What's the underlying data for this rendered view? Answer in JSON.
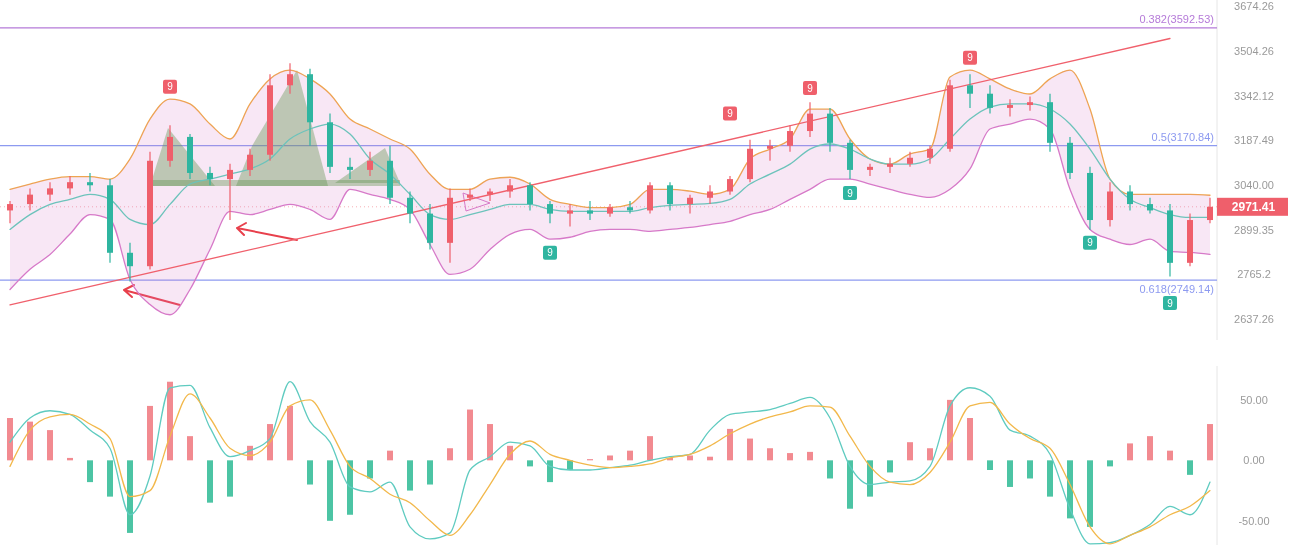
{
  "chart_data": [
    {
      "type": "candlestick",
      "log": true,
      "ylim": [
        2580,
        3700
      ],
      "yticks": [
        3674.26,
        3504.26,
        3342.12,
        3187.49,
        {
          "value": 3040,
          "label": "3040.00"
        },
        2899.35,
        2765.2,
        2637.26
      ],
      "categories": [
        null,
        null,
        null,
        null,
        null,
        null,
        null,
        null,
        null,
        null,
        null,
        null,
        null,
        null,
        null,
        null,
        null,
        null,
        null,
        null,
        null,
        null,
        null,
        null,
        null,
        null,
        null,
        null,
        null,
        null,
        null,
        null,
        null,
        null,
        null,
        null,
        null,
        null,
        null,
        null,
        null,
        null,
        null,
        null,
        null,
        null,
        null,
        null,
        null,
        null,
        null,
        null,
        null,
        null,
        null,
        null,
        null,
        null,
        null,
        null,
        null
      ],
      "colors": [
        "#ef5f6b",
        "#ef5f6b",
        "#ef5f6b",
        "#ef5f6b",
        "#2fb5a0",
        "#2fb5a0",
        "#2fb5a0",
        "#ef5f6b",
        "#ef5f6b",
        "#2fb5a0",
        "#2fb5a0",
        "#ef5f6b",
        "#ef5f6b",
        "#ef5f6b",
        "#ef5f6b",
        "#2fb5a0",
        "#2fb5a0",
        "#2fb5a0",
        "#ef5f6b",
        "#2fb5a0",
        "#2fb5a0",
        "#2fb5a0",
        "#ef5f6b",
        "#ef5f6b",
        "#ef5f6b",
        "#ef5f6b",
        "#2fb5a0",
        "#2fb5a0",
        "#ef5f6b",
        "#2fb5a0",
        "#ef5f6b",
        "#2fb5a0",
        "#ef5f6b",
        "#2fb5a0",
        "#ef5f6b",
        "#ef5f6b",
        "#ef5f6b",
        "#ef5f6b",
        "#ef5f6b",
        "#ef5f6b",
        "#ef5f6b",
        "#2fb5a0",
        "#2fb5a0",
        "#ef5f6b",
        "#ef5f6b",
        "#ef5f6b",
        "#ef5f6b",
        "#ef5f6b",
        "#2fb5a0",
        "#2fb5a0",
        "#ef5f6b",
        "#ef5f6b",
        "#2fb5a0",
        "#2fb5a0",
        "#2fb5a0",
        "#ef5f6b",
        "#2fb5a0",
        "#2fb5a0",
        "#2fb5a0",
        "#ef5f6b",
        "#ef5f6b"
      ],
      "ohlc": [
        [
          2960,
          2990,
          2920,
          2980
        ],
        [
          2980,
          3030,
          2960,
          3010
        ],
        [
          3010,
          3050,
          2990,
          3030
        ],
        [
          3030,
          3070,
          3010,
          3050
        ],
        [
          3050,
          3080,
          3020,
          3040
        ],
        [
          3040,
          3060,
          2800,
          2830
        ],
        [
          2830,
          2860,
          2745,
          2790
        ],
        [
          2790,
          3150,
          2780,
          3120
        ],
        [
          3120,
          3240,
          3100,
          3200
        ],
        [
          3200,
          3210,
          3060,
          3080
        ],
        [
          3080,
          3100,
          3040,
          3060
        ],
        [
          3060,
          3110,
          2930,
          3090
        ],
        [
          3090,
          3160,
          3070,
          3140
        ],
        [
          3140,
          3420,
          3120,
          3380
        ],
        [
          3380,
          3460,
          3350,
          3420
        ],
        [
          3420,
          3440,
          3170,
          3250
        ],
        [
          3250,
          3280,
          3080,
          3100
        ],
        [
          3100,
          3130,
          3060,
          3090
        ],
        [
          3090,
          3150,
          3070,
          3120
        ],
        [
          3120,
          3170,
          2980,
          3000
        ],
        [
          3000,
          3020,
          2920,
          2950
        ],
        [
          2950,
          2980,
          2840,
          2860
        ],
        [
          2860,
          3030,
          2800,
          3000
        ],
        [
          3000,
          3030,
          2990,
          3010
        ],
        [
          3010,
          3030,
          2990,
          3020
        ],
        [
          3020,
          3060,
          3000,
          3040
        ],
        [
          3040,
          3050,
          2960,
          2980
        ],
        [
          2980,
          2990,
          2920,
          2950
        ],
        [
          2950,
          2980,
          2910,
          2960
        ],
        [
          2960,
          2990,
          2930,
          2950
        ],
        [
          2950,
          2980,
          2940,
          2970
        ],
        [
          2970,
          2990,
          2950,
          2960
        ],
        [
          2960,
          3050,
          2950,
          3040
        ],
        [
          3040,
          3050,
          2960,
          2980
        ],
        [
          2980,
          3010,
          2950,
          3000
        ],
        [
          3000,
          3040,
          2980,
          3020
        ],
        [
          3020,
          3070,
          3010,
          3060
        ],
        [
          3060,
          3190,
          3050,
          3160
        ],
        [
          3160,
          3190,
          3120,
          3170
        ],
        [
          3170,
          3240,
          3150,
          3220
        ],
        [
          3220,
          3320,
          3200,
          3280
        ],
        [
          3280,
          3300,
          3150,
          3180
        ],
        [
          3180,
          3190,
          3060,
          3090
        ],
        [
          3090,
          3110,
          3070,
          3100
        ],
        [
          3100,
          3130,
          3080,
          3110
        ],
        [
          3110,
          3150,
          3100,
          3130
        ],
        [
          3130,
          3170,
          3110,
          3160
        ],
        [
          3160,
          3400,
          3150,
          3380
        ],
        [
          3380,
          3420,
          3300,
          3350
        ],
        [
          3350,
          3380,
          3280,
          3300
        ],
        [
          3300,
          3330,
          3270,
          3310
        ],
        [
          3310,
          3340,
          3290,
          3320
        ],
        [
          3320,
          3350,
          3150,
          3180
        ],
        [
          3180,
          3200,
          3060,
          3080
        ],
        [
          3080,
          3100,
          2900,
          2930
        ],
        [
          2930,
          3050,
          2910,
          3020
        ],
        [
          3020,
          3040,
          2960,
          2980
        ],
        [
          2980,
          3000,
          2950,
          2960
        ],
        [
          2960,
          2980,
          2760,
          2800
        ],
        [
          2800,
          2950,
          2790,
          2930
        ],
        [
          2930,
          3000,
          2920,
          2971.41
        ]
      ],
      "series": [
        {
          "type": "line",
          "color": "#f0a84a",
          "values": [
            3027,
            3044,
            3060,
            3068,
            3068,
            3060,
            3126,
            3261,
            3331,
            3314,
            3244,
            3193,
            3314,
            3403,
            3435,
            3403,
            3349,
            3261,
            3227,
            3193,
            3159,
            3076,
            3027,
            3027,
            3060,
            3066,
            3044,
            2995,
            2979,
            2969,
            2969,
            2979,
            3027,
            3027,
            3021,
            3011,
            3027,
            3126,
            3159,
            3193,
            3296,
            3296,
            3193,
            3126,
            3109,
            3143,
            3159,
            3410,
            3435,
            3403,
            3367,
            3349,
            3403,
            3435,
            3296,
            3060,
            3011,
            3011,
            3011,
            3011,
            3008
          ]
        },
        {
          "type": "line",
          "color": "#d77ac9",
          "values": [
            2722,
            2781,
            2825,
            2887,
            2947,
            2932,
            2751,
            2679,
            2650,
            2722,
            2840,
            2957,
            2947,
            2963,
            2979,
            2963,
            2932,
            3027,
            3011,
            2995,
            2963,
            2855,
            2766,
            2781,
            2840,
            2886,
            2901,
            2871,
            2877,
            2895,
            2901,
            2901,
            2895,
            2901,
            2907,
            2916,
            2926,
            2947,
            2963,
            2995,
            3027,
            3060,
            3060,
            3044,
            3027,
            3011,
            3001,
            3027,
            3093,
            3227,
            3244,
            3261,
            3227,
            3027,
            2901,
            2871,
            2855,
            2871,
            2834,
            2831,
            2825
          ]
        },
        {
          "type": "line",
          "color": "#6cc3bb",
          "values": [
            2901,
            2947,
            2979,
            2995,
            3011,
            2995,
            2932,
            2916,
            2979,
            3044,
            3060,
            3076,
            3093,
            3126,
            3193,
            3227,
            3244,
            3210,
            3126,
            3076,
            3011,
            2947,
            2932,
            2947,
            2963,
            2979,
            2979,
            2963,
            2957,
            2957,
            2957,
            2957,
            2969,
            2976,
            2979,
            2982,
            2995,
            3044,
            3076,
            3109,
            3159,
            3176,
            3159,
            3126,
            3109,
            3109,
            3126,
            3193,
            3261,
            3303,
            3314,
            3314,
            3296,
            3244,
            3159,
            3060,
            2995,
            2969,
            2947,
            2938,
            2938
          ],
          "lower": [
            2722,
            2781,
            2825,
            2887,
            2947,
            2932,
            2751,
            2679,
            2650,
            2722,
            2840,
            2957,
            2947,
            2963,
            2979,
            2963,
            2932,
            3027,
            3011,
            2995,
            2963,
            2855,
            2766,
            2781,
            2840,
            2886,
            2901,
            2871,
            2877,
            2895,
            2901,
            2901,
            2895,
            2901,
            2907,
            2916,
            2926,
            2947,
            2963,
            2995,
            3027,
            3060,
            3060,
            3044,
            3027,
            3011,
            3001,
            3027,
            3093,
            3227,
            3244,
            3261,
            3227,
            3027,
            2901,
            2871,
            2855,
            2871,
            2834,
            2831,
            2825
          ],
          "upper": [
            3027,
            3044,
            3060,
            3068,
            3068,
            3060,
            3126,
            3261,
            3331,
            3314,
            3244,
            3193,
            3314,
            3403,
            3435,
            3403,
            3349,
            3261,
            3227,
            3193,
            3159,
            3076,
            3027,
            3027,
            3060,
            3066,
            3044,
            2995,
            2979,
            2969,
            2969,
            2979,
            3027,
            3027,
            3021,
            3011,
            3027,
            3126,
            3159,
            3193,
            3296,
            3296,
            3193,
            3126,
            3109,
            3143,
            3159,
            3410,
            3435,
            3403,
            3367,
            3349,
            3403,
            3435,
            3296,
            3060,
            3011,
            3011,
            3011,
            3011,
            3008
          ]
        },
        {
          "type": "line",
          "color": "#f0606c",
          "values": [
            2678,
            null,
            null,
            null,
            null,
            null,
            null,
            null,
            null,
            null,
            null,
            null,
            null,
            null,
            null,
            null,
            null,
            null,
            null,
            null,
            null,
            null,
            null,
            null,
            null,
            null,
            null,
            null,
            null,
            null,
            null,
            null,
            null,
            null,
            null,
            null,
            null,
            null,
            null,
            null,
            null,
            null,
            null,
            null,
            null,
            null,
            null,
            null,
            null,
            null,
            null,
            null,
            null,
            null,
            null,
            null,
            null,
            null,
            3552,
            null,
            null
          ]
        }
      ],
      "ref_lines": [
        {
          "axis": "y",
          "value": 3592.53,
          "label": "0.382(3592.53)",
          "color": "#b57ad8"
        },
        {
          "axis": "y",
          "value": 3170.84,
          "label": "0.5(3170.84)",
          "color": "#8d9af0"
        },
        {
          "axis": "y",
          "value": 2749.14,
          "label": "0.618(2749.14)",
          "color": "#8d9af0"
        },
        {
          "axis": "y",
          "value": 2971.41,
          "label": "2971.41",
          "color": "#ef5f6b",
          "line_style": "dotted"
        }
      ],
      "annotations": [
        {
          "text": "9",
          "y": 3375
        },
        {
          "text": "9",
          "y": 3280
        },
        {
          "text": "9",
          "y": 3370
        },
        {
          "text": "9",
          "y": 3480
        },
        {
          "text": "9",
          "y": 2830
        },
        {
          "text": "9",
          "y": 3015
        },
        {
          "text": "9",
          "y": 2860
        },
        {
          "text": "9",
          "y": 2683
        }
      ]
    },
    {
      "type": "bar",
      "ylim": [
        -70,
        78
      ],
      "yticks": [
        {
          "value": 50,
          "label": "50.00"
        },
        {
          "value": 0,
          "label": "0.00"
        },
        {
          "value": -50,
          "label": "-50.00"
        }
      ],
      "categories": [
        null,
        null,
        null,
        null,
        null,
        null,
        null,
        null,
        null,
        null,
        null,
        null,
        null,
        null,
        null,
        null,
        null,
        null,
        null,
        null,
        null,
        null,
        null,
        null,
        null,
        null,
        null,
        null,
        null,
        null,
        null,
        null,
        null,
        null,
        null,
        null,
        null,
        null,
        null,
        null,
        null,
        null,
        null,
        null,
        null,
        null,
        null,
        null,
        null,
        null,
        null,
        null,
        null,
        null,
        null,
        null,
        null,
        null,
        null,
        null,
        null
      ],
      "series": [
        {
          "type": "bar",
          "values": [
            35,
            32,
            25,
            2,
            -18,
            -30,
            -60,
            45,
            65,
            20,
            -35,
            -30,
            12,
            30,
            45,
            -20,
            -50,
            -45,
            -15,
            8,
            -25,
            -20,
            10,
            42,
            30,
            12,
            -5,
            -18,
            -8,
            1,
            4,
            8,
            20,
            2,
            4,
            3,
            26,
            18,
            10,
            6,
            7,
            -15,
            -40,
            -30,
            -10,
            15,
            10,
            50,
            35,
            -8,
            -22,
            -15,
            -30,
            -48,
            -55,
            -5,
            14,
            20,
            8,
            -12,
            30
          ],
          "colors": [
            "#f28a90",
            "#f28a90",
            "#f28a90",
            "#f28a90",
            "#4cc4a4",
            "#4cc4a4",
            "#4cc4a4",
            "#f28a90",
            "#f28a90",
            "#f28a90",
            "#4cc4a4",
            "#4cc4a4",
            "#f28a90",
            "#f28a90",
            "#f28a90",
            "#4cc4a4",
            "#4cc4a4",
            "#4cc4a4",
            "#4cc4a4",
            "#f28a90",
            "#4cc4a4",
            "#4cc4a4",
            "#f28a90",
            "#f28a90",
            "#f28a90",
            "#f28a90",
            "#4cc4a4",
            "#4cc4a4",
            "#4cc4a4",
            "#f28a90",
            "#f28a90",
            "#f28a90",
            "#f28a90",
            "#f28a90",
            "#f28a90",
            "#f28a90",
            "#f28a90",
            "#f28a90",
            "#f28a90",
            "#f28a90",
            "#f28a90",
            "#4cc4a4",
            "#4cc4a4",
            "#4cc4a4",
            "#4cc4a4",
            "#f28a90",
            "#f28a90",
            "#f28a90",
            "#f28a90",
            "#4cc4a4",
            "#4cc4a4",
            "#4cc4a4",
            "#4cc4a4",
            "#4cc4a4",
            "#4cc4a4",
            "#4cc4a4",
            "#f28a90",
            "#f28a90",
            "#f28a90",
            "#4cc4a4",
            "#f28a90"
          ]
        },
        {
          "type": "line",
          "color": "#5fcbc0",
          "values": [
            15,
            35,
            41,
            38,
            25,
            10,
            -45,
            -13,
            60,
            62,
            27,
            3,
            8,
            18,
            65,
            32,
            15,
            -22,
            -26,
            -18,
            -55,
            -65,
            -60,
            -8,
            3,
            15,
            12,
            -5,
            -8,
            -8,
            -6,
            -4,
            0,
            3,
            5,
            25,
            38,
            40,
            42,
            47,
            52,
            35,
            -5,
            -20,
            -18,
            -17,
            -5,
            45,
            60,
            53,
            25,
            20,
            5,
            -40,
            -69,
            -68,
            -62,
            -53,
            -38,
            -45,
            -18
          ]
        },
        {
          "type": "line",
          "color": "#f2b84b",
          "values": [
            -5,
            25,
            36,
            38,
            30,
            18,
            -30,
            -25,
            20,
            55,
            35,
            10,
            4,
            15,
            45,
            50,
            25,
            -5,
            -15,
            -28,
            -35,
            -50,
            -62,
            -45,
            -20,
            5,
            16,
            5,
            0,
            -4,
            -6,
            -5,
            -3,
            2,
            5,
            12,
            22,
            30,
            36,
            40,
            45,
            44,
            20,
            -5,
            -18,
            -20,
            -10,
            15,
            45,
            48,
            30,
            18,
            10,
            -20,
            -55,
            -69,
            -62,
            -55,
            -45,
            -38,
            -25
          ]
        }
      ]
    }
  ]
}
